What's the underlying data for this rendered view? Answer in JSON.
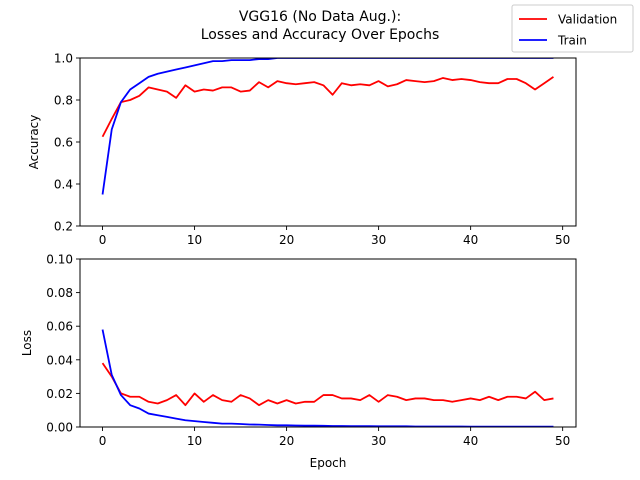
{
  "figure": {
    "title_line1": "VGG16 (No Data Aug.):",
    "title_line2": "Losses and Accuracy Over Epochs"
  },
  "legend": {
    "placement": "top-right",
    "items": [
      {
        "label": "Validation",
        "color": "#ff0000"
      },
      {
        "label": "Train",
        "color": "#0000ff"
      }
    ]
  },
  "chart_data": [
    {
      "type": "line",
      "ylabel": "Accuracy",
      "xlabel": "",
      "xlim": [
        -2.45,
        51.45
      ],
      "ylim": [
        0.2,
        1.0
      ],
      "xticks": [
        0,
        10,
        20,
        30,
        40,
        50
      ],
      "xtick_labels": [
        "0",
        "10",
        "20",
        "30",
        "40",
        "50"
      ],
      "yticks": [
        0.2,
        0.4,
        0.6,
        0.8,
        1.0
      ],
      "ytick_labels": [
        "0.2",
        "0.4",
        "0.6",
        "0.8",
        "1.0"
      ],
      "grid": false,
      "x": [
        0,
        1,
        2,
        3,
        4,
        5,
        6,
        7,
        8,
        9,
        10,
        11,
        12,
        13,
        14,
        15,
        16,
        17,
        18,
        19,
        20,
        21,
        22,
        23,
        24,
        25,
        26,
        27,
        28,
        29,
        30,
        31,
        32,
        33,
        34,
        35,
        36,
        37,
        38,
        39,
        40,
        41,
        42,
        43,
        44,
        45,
        46,
        47,
        48,
        49
      ],
      "series": [
        {
          "name": "Validation",
          "color": "#ff0000",
          "values": [
            0.625,
            0.71,
            0.79,
            0.8,
            0.82,
            0.86,
            0.85,
            0.84,
            0.81,
            0.87,
            0.84,
            0.85,
            0.845,
            0.86,
            0.86,
            0.84,
            0.845,
            0.885,
            0.86,
            0.89,
            0.88,
            0.875,
            0.88,
            0.885,
            0.87,
            0.825,
            0.88,
            0.87,
            0.875,
            0.87,
            0.89,
            0.865,
            0.875,
            0.895,
            0.89,
            0.885,
            0.89,
            0.905,
            0.895,
            0.9,
            0.895,
            0.885,
            0.88,
            0.88,
            0.9,
            0.9,
            0.88,
            0.85,
            0.88,
            0.91
          ]
        },
        {
          "name": "Train",
          "color": "#0000ff",
          "values": [
            0.35,
            0.66,
            0.79,
            0.85,
            0.88,
            0.91,
            0.925,
            0.935,
            0.945,
            0.955,
            0.965,
            0.975,
            0.985,
            0.985,
            0.99,
            0.99,
            0.99,
            0.995,
            0.995,
            1.0,
            1.0,
            1.0,
            1.0,
            1.0,
            1.0,
            1.0,
            1.0,
            1.0,
            1.0,
            1.0,
            1.0,
            1.0,
            1.0,
            1.0,
            1.0,
            1.0,
            1.0,
            1.0,
            1.0,
            1.0,
            1.0,
            1.0,
            1.0,
            1.0,
            1.0,
            1.0,
            1.0,
            1.0,
            1.0,
            1.0
          ]
        }
      ]
    },
    {
      "type": "line",
      "ylabel": "Loss",
      "xlabel": "Epoch",
      "xlim": [
        -2.45,
        51.45
      ],
      "ylim": [
        0.0,
        0.1
      ],
      "xticks": [
        0,
        10,
        20,
        30,
        40,
        50
      ],
      "xtick_labels": [
        "0",
        "10",
        "20",
        "30",
        "40",
        "50"
      ],
      "yticks": [
        0.0,
        0.02,
        0.04,
        0.06,
        0.08,
        0.1
      ],
      "ytick_labels": [
        "0.00",
        "0.02",
        "0.04",
        "0.06",
        "0.08",
        "0.10"
      ],
      "grid": false,
      "x": [
        0,
        1,
        2,
        3,
        4,
        5,
        6,
        7,
        8,
        9,
        10,
        11,
        12,
        13,
        14,
        15,
        16,
        17,
        18,
        19,
        20,
        21,
        22,
        23,
        24,
        25,
        26,
        27,
        28,
        29,
        30,
        31,
        32,
        33,
        34,
        35,
        36,
        37,
        38,
        39,
        40,
        41,
        42,
        43,
        44,
        45,
        46,
        47,
        48,
        49
      ],
      "series": [
        {
          "name": "Validation",
          "color": "#ff0000",
          "values": [
            0.038,
            0.03,
            0.02,
            0.018,
            0.018,
            0.015,
            0.014,
            0.016,
            0.019,
            0.013,
            0.02,
            0.015,
            0.019,
            0.016,
            0.015,
            0.019,
            0.017,
            0.013,
            0.016,
            0.014,
            0.016,
            0.014,
            0.015,
            0.015,
            0.019,
            0.019,
            0.017,
            0.017,
            0.016,
            0.019,
            0.015,
            0.019,
            0.018,
            0.016,
            0.017,
            0.017,
            0.016,
            0.016,
            0.015,
            0.016,
            0.017,
            0.016,
            0.018,
            0.016,
            0.018,
            0.018,
            0.017,
            0.021,
            0.016,
            0.017
          ]
        },
        {
          "name": "Train",
          "color": "#0000ff",
          "values": [
            0.058,
            0.031,
            0.019,
            0.013,
            0.011,
            0.008,
            0.007,
            0.006,
            0.005,
            0.004,
            0.0035,
            0.003,
            0.0025,
            0.002,
            0.002,
            0.0018,
            0.0015,
            0.0014,
            0.0012,
            0.001,
            0.001,
            0.0009,
            0.0008,
            0.0008,
            0.0007,
            0.0006,
            0.0006,
            0.0005,
            0.0005,
            0.0005,
            0.0004,
            0.0004,
            0.0004,
            0.0004,
            0.0003,
            0.0003,
            0.0003,
            0.0003,
            0.0003,
            0.0003,
            0.0002,
            0.0002,
            0.0002,
            0.0002,
            0.0002,
            0.0002,
            0.0002,
            0.0002,
            0.0002,
            0.0002
          ]
        }
      ]
    }
  ]
}
